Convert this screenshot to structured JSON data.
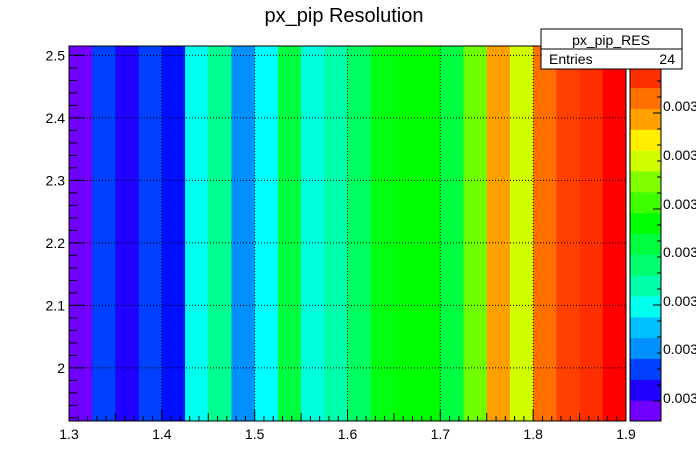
{
  "chart_data": {
    "type": "heatmap",
    "title": "px_pip Resolution",
    "xlabel": "",
    "ylabel": "",
    "xlim": [
      1.3,
      1.9
    ],
    "ylim": [
      1.915,
      2.515
    ],
    "x_ticks": [
      "1.3",
      "1.4",
      "1.5",
      "1.6",
      "1.7",
      "1.8",
      "1.9"
    ],
    "y_ticks": [
      "2",
      "2.1",
      "2.2",
      "2.3",
      "2.4",
      "2.5"
    ],
    "grid": true,
    "columns": [
      {
        "x0": 1.3,
        "x1": 1.325,
        "color": "#7000ff"
      },
      {
        "x0": 1.325,
        "x1": 1.35,
        "color": "#0040ff"
      },
      {
        "x0": 1.35,
        "x1": 1.375,
        "color": "#2000ff"
      },
      {
        "x0": 1.375,
        "x1": 1.4,
        "color": "#0040ff"
      },
      {
        "x0": 1.4,
        "x1": 1.425,
        "color": "#0010ff"
      },
      {
        "x0": 1.425,
        "x1": 1.45,
        "color": "#00ffee"
      },
      {
        "x0": 1.45,
        "x1": 1.475,
        "color": "#00ff90"
      },
      {
        "x0": 1.475,
        "x1": 1.5,
        "color": "#0090ff"
      },
      {
        "x0": 1.5,
        "x1": 1.525,
        "color": "#00ffff"
      },
      {
        "x0": 1.525,
        "x1": 1.55,
        "color": "#00ff40"
      },
      {
        "x0": 1.55,
        "x1": 1.575,
        "color": "#00ffdd"
      },
      {
        "x0": 1.575,
        "x1": 1.6,
        "color": "#00ffaa"
      },
      {
        "x0": 1.6,
        "x1": 1.625,
        "color": "#00ff60"
      },
      {
        "x0": 1.625,
        "x1": 1.65,
        "color": "#00ff10"
      },
      {
        "x0": 1.65,
        "x1": 1.675,
        "color": "#00ff00"
      },
      {
        "x0": 1.675,
        "x1": 1.7,
        "color": "#00ff00"
      },
      {
        "x0": 1.7,
        "x1": 1.725,
        "color": "#00ff40"
      },
      {
        "x0": 1.725,
        "x1": 1.75,
        "color": "#70ff00"
      },
      {
        "x0": 1.75,
        "x1": 1.775,
        "color": "#ffa000"
      },
      {
        "x0": 1.775,
        "x1": 1.8,
        "color": "#d0ff00"
      },
      {
        "x0": 1.8,
        "x1": 1.825,
        "color": "#ff7000"
      },
      {
        "x0": 1.825,
        "x1": 1.85,
        "color": "#ff4000"
      },
      {
        "x0": 1.85,
        "x1": 1.875,
        "color": "#ff3000"
      },
      {
        "x0": 1.875,
        "x1": 1.9,
        "color": "#ff0000"
      }
    ],
    "palette": [
      "#7000ff",
      "#2000ff",
      "#0040ff",
      "#0090ff",
      "#00c0ff",
      "#00ffee",
      "#00ffaa",
      "#00ff70",
      "#00ff40",
      "#00ff00",
      "#40ff00",
      "#80ff00",
      "#d0ff00",
      "#ffee00",
      "#ffa000",
      "#ff7000",
      "#ff3000",
      "#ff0000"
    ],
    "palette_labels": [
      "0.003",
      "0.003",
      "0.003",
      "0.003",
      "0.003",
      "0.003",
      "0.003"
    ],
    "stats": {
      "name": "px_pip_RES",
      "entries_label": "Entries",
      "entries_value": "24"
    }
  }
}
